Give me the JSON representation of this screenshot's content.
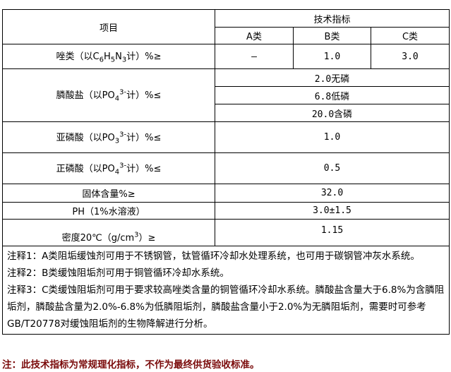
{
  "header": {
    "item": "项目",
    "tech": "技术指标",
    "a": "A类",
    "b": "B类",
    "c": "C类"
  },
  "rows": {
    "azole": {
      "label_pre": "唑类（以C",
      "s1": "6",
      "h": "H",
      "s2": "5",
      "n": "N",
      "s3": "3",
      "label_post": "计）%≥",
      "a": "—",
      "b": "1.0",
      "c": "3.0"
    },
    "phosphonate": {
      "label_pre": "膦酸盐（以PO",
      "sub": "4",
      "sup": "3-",
      "label_post": "计）%≤",
      "values": [
        "2.0无磷",
        "6.8低磷",
        "20.0含磷"
      ]
    },
    "phosphorous": {
      "label_pre": "亚磷酸（以PO",
      "sub": "3",
      "sup": "3-",
      "label_post": "计）%≤",
      "value": "1.0"
    },
    "orthophosphate": {
      "label_pre": "正磷酸（以PO",
      "sub": "4",
      "sup": "3-",
      "label_post": "计）%≤",
      "value": "0.5"
    },
    "solids": {
      "label": "固体含量%≥",
      "value": "32.0"
    },
    "ph": {
      "label": "PH（1%水溶液）",
      "value": "3.0±1.5"
    },
    "density": {
      "label_pre": "密度20℃（g/cm",
      "sup": "3",
      "label_post": "）≥",
      "value": "1.15"
    }
  },
  "notes": [
    "注释1：A类阻垢缓蚀剂可用于不锈钢管，钛管循环冷却水处理系统，也可用于碳钢管冲灰水系统。",
    "注释2：B类缓蚀阻垢剂可用于铜管循环冷却水系统。",
    "注释3：C类缓蚀阻垢剂可用于要求较高唑类含量的铜管循环冷却水系统。膦酸盐含量大于6.8%为含膦阻垢剂，膦酸盐含量为2.0%-6.8%为低膦阻垢剂，膦酸盐含量小于2.0%为无膦阻垢剂，需要时可参考GB/T20778对缓蚀阻垢剂的生物降解进行分析。"
  ],
  "footer": "注：此技术指标为常规理化指标，不作为最终供货验收标准。",
  "colors": {
    "footer": "#7a0a0a"
  }
}
